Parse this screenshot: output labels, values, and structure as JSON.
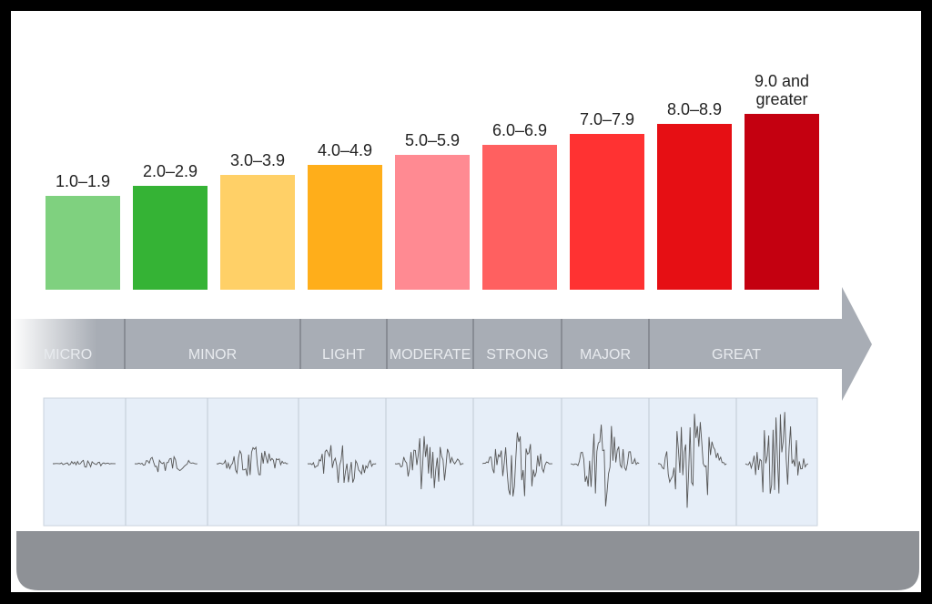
{
  "bars": [
    {
      "label": "1.0–1.9",
      "color": "#7fd17f"
    },
    {
      "label": "2.0–2.9",
      "color": "#35b335"
    },
    {
      "label": "3.0–3.9",
      "color": "#ffd067"
    },
    {
      "label": "4.0–4.9",
      "color": "#ffae1a"
    },
    {
      "label": "5.0–5.9",
      "color": "#ff8a92"
    },
    {
      "label": "6.0–6.9",
      "color": "#ff6060"
    },
    {
      "label": "7.0–7.9",
      "color": "#ff3232"
    },
    {
      "label": "8.0–8.9",
      "color": "#e60f14"
    },
    {
      "label": "9.0 and greater",
      "color": "#c40010"
    }
  ],
  "classes": [
    {
      "label": "MICRO"
    },
    {
      "label": "MINOR"
    },
    {
      "label": "LIGHT"
    },
    {
      "label": "MODERATE"
    },
    {
      "label": "STRONG"
    },
    {
      "label": "MAJOR"
    },
    {
      "label": "GREAT"
    }
  ]
}
